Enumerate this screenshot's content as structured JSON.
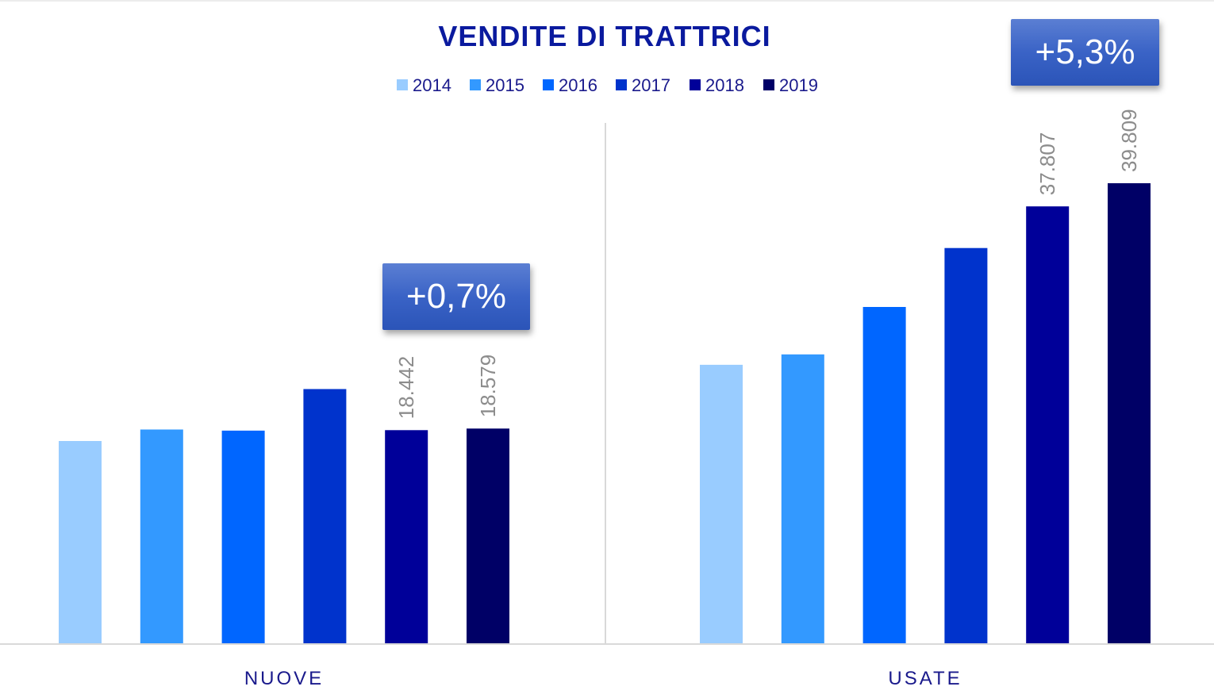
{
  "chart_data": {
    "type": "bar",
    "title": "VENDITE DI TRATTRICI",
    "categories": [
      "NUOVE",
      "USATE"
    ],
    "series": [
      {
        "name": "2014",
        "color": "#99ccff",
        "values": [
          17500,
          24100
        ]
      },
      {
        "name": "2015",
        "color": "#3399ff",
        "values": [
          18500,
          25000
        ]
      },
      {
        "name": "2016",
        "color": "#0066ff",
        "values": [
          18400,
          29100
        ]
      },
      {
        "name": "2017",
        "color": "#0033cc",
        "values": [
          22000,
          34200
        ]
      },
      {
        "name": "2018",
        "color": "#000099",
        "values": [
          18442,
          37807
        ]
      },
      {
        "name": "2019",
        "color": "#000066",
        "values": [
          18579,
          39809
        ]
      }
    ],
    "data_labels": [
      {
        "category": "NUOVE",
        "series": "2018",
        "text": "18.442"
      },
      {
        "category": "NUOVE",
        "series": "2019",
        "text": "18.579"
      },
      {
        "category": "USATE",
        "series": "2018",
        "text": "37.807"
      },
      {
        "category": "USATE",
        "series": "2019",
        "text": "39.809"
      }
    ],
    "annotations": [
      {
        "category": "NUOVE",
        "text": "+0,7%"
      },
      {
        "category": "USATE",
        "text": "+5,3%"
      }
    ],
    "ylim": [
      0,
      44000
    ],
    "legend_position": "top-center",
    "grid": false
  }
}
